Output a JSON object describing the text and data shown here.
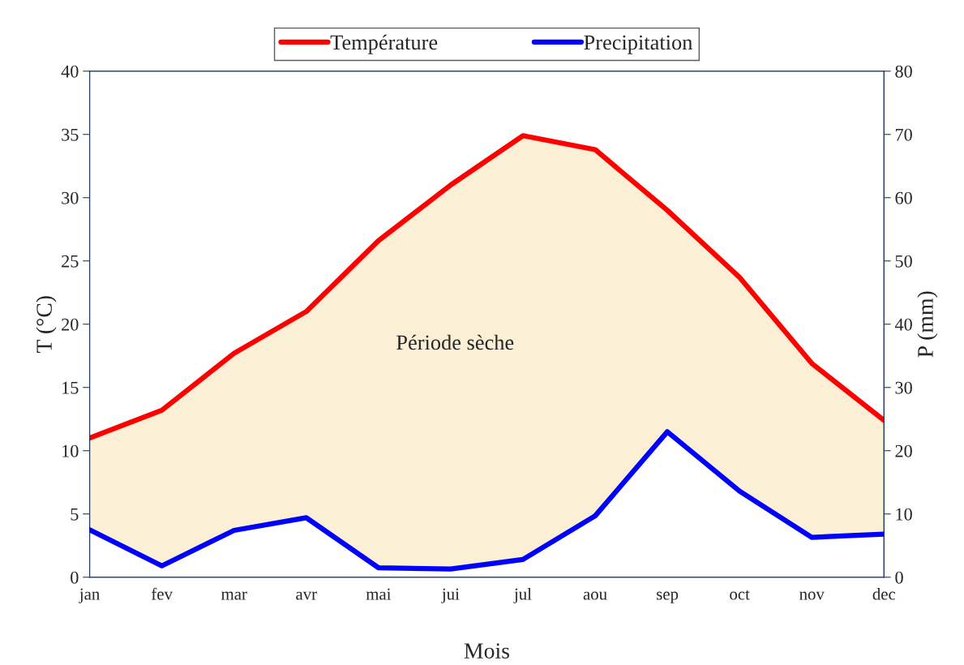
{
  "chart_data": {
    "type": "line",
    "xlabel": "Mois",
    "ylabel": "T (°C)",
    "y2label": "P (mm)",
    "categories": [
      "jan",
      "fev",
      "mar",
      "avr",
      "mai",
      "jui",
      "jul",
      "aou",
      "sep",
      "oct",
      "nov",
      "dec"
    ],
    "series": [
      {
        "name": "Température",
        "color": "#ff0000",
        "values": [
          11,
          13.2,
          17.7,
          21,
          26.6,
          31,
          34.9,
          33.8,
          29,
          23.7,
          16.9,
          12.4
        ],
        "lower": [
          3.75,
          0.9,
          3.7,
          4.7,
          0.75,
          0.65,
          1.4,
          4.85,
          11.5,
          6.8,
          3.15,
          3.4
        ],
        "upper": [
          11,
          13.2,
          17.7,
          21,
          26.6,
          31,
          34.9,
          33.8,
          29,
          23.7,
          16.9,
          12.4
        ]
      },
      {
        "name": "Precipitation",
        "color": "#0000ff",
        "axis": "y2",
        "values": [
          7.5,
          1.8,
          7.4,
          9.4,
          1.5,
          1.3,
          2.8,
          9.7,
          23,
          13.6,
          6.3,
          6.8
        ]
      }
    ],
    "ylim": [
      0,
      40
    ],
    "yticks": [
      0,
      5,
      10,
      15,
      20,
      25,
      30,
      35,
      40
    ],
    "y2lim": [
      0,
      80
    ],
    "y2ticks": [
      0,
      10,
      20,
      30,
      40,
      50,
      60,
      70,
      80
    ],
    "annotations": [
      "Période sèche"
    ],
    "legend": "top",
    "grid": false
  }
}
